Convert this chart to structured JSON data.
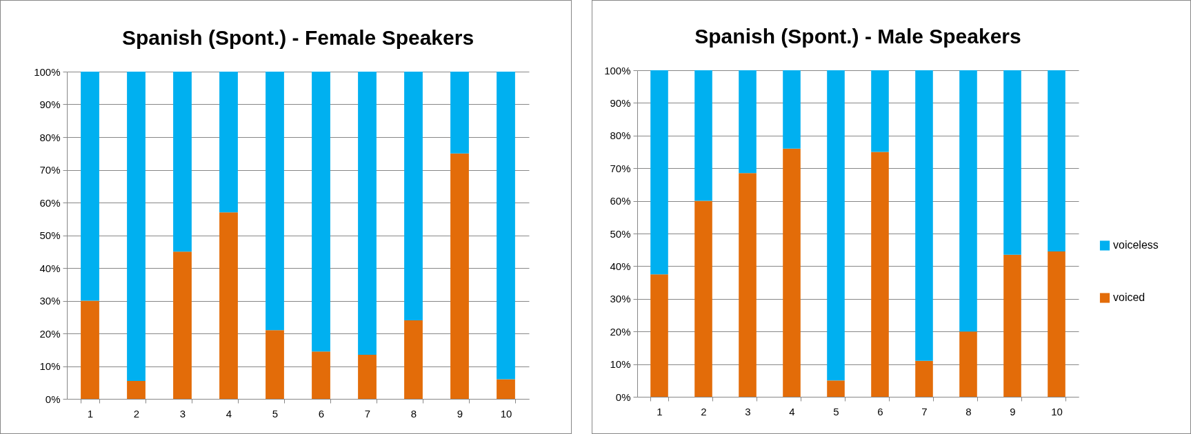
{
  "chart_data": [
    {
      "type": "bar",
      "title": "Spanish (Spont.) - Female Speakers",
      "stacked": true,
      "legend": false,
      "grid": "y",
      "categories": [
        "1",
        "2",
        "3",
        "4",
        "5",
        "6",
        "7",
        "8",
        "9",
        "10"
      ],
      "series": [
        {
          "color": "#e36c09",
          "values": [
            30,
            5.5,
            45,
            57,
            21,
            14.5,
            13.5,
            24,
            75,
            6
          ]
        },
        {
          "color": "#00b0f0",
          "values": [
            70,
            94.5,
            55,
            43,
            79,
            85.5,
            86.5,
            76,
            25,
            94
          ]
        }
      ],
      "ylim": [
        0,
        100
      ],
      "yticks": [
        {
          "value": 0,
          "label": "0%"
        },
        {
          "value": 10,
          "label": "10%"
        },
        {
          "value": 20,
          "label": "20%"
        },
        {
          "value": 30,
          "label": "30%"
        },
        {
          "value": 40,
          "label": "40%"
        },
        {
          "value": 50,
          "label": "50%"
        },
        {
          "value": 60,
          "label": "60%"
        },
        {
          "value": 70,
          "label": "70%"
        },
        {
          "value": 80,
          "label": "80%"
        },
        {
          "value": 90,
          "label": "90%"
        },
        {
          "value": 100,
          "label": "100%"
        }
      ]
    },
    {
      "type": "bar",
      "title": "Spanish (Spont.) - Male Speakers",
      "stacked": true,
      "legend": "right",
      "grid": "y",
      "categories": [
        "1",
        "2",
        "3",
        "4",
        "5",
        "6",
        "7",
        "8",
        "9",
        "10"
      ],
      "series": [
        {
          "name": "voiced",
          "color": "#e36c09",
          "values": [
            37.5,
            60,
            68.5,
            76,
            5,
            75,
            11,
            20,
            43.5,
            44.5
          ]
        },
        {
          "name": "voiceless",
          "color": "#00b0f0",
          "values": [
            62.5,
            40,
            31.5,
            24,
            95,
            25,
            89,
            80,
            56.5,
            55.5
          ]
        }
      ],
      "ylim": [
        0,
        100
      ],
      "yticks": [
        {
          "value": 0,
          "label": "0%"
        },
        {
          "value": 10,
          "label": "10%"
        },
        {
          "value": 20,
          "label": "20%"
        },
        {
          "value": 30,
          "label": "30%"
        },
        {
          "value": 40,
          "label": "40%"
        },
        {
          "value": 50,
          "label": "50%"
        },
        {
          "value": 60,
          "label": "60%"
        },
        {
          "value": 70,
          "label": "70%"
        },
        {
          "value": 80,
          "label": "80%"
        },
        {
          "value": 90,
          "label": "90%"
        },
        {
          "value": 100,
          "label": "100%"
        }
      ]
    }
  ]
}
